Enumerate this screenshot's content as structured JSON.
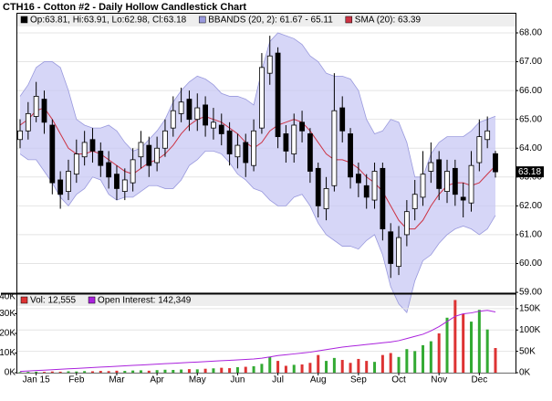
{
  "chart_data": [
    {
      "type": "candlestick",
      "title": "CTH16 - Cotton #2 - Daily Hollow Candlestick Chart",
      "last_price_label": "63.18",
      "ylim": [
        58.97,
        68.19
      ],
      "yticks": [
        {
          "value": 59,
          "label": "59.00"
        },
        {
          "value": 60,
          "label": "60.00"
        },
        {
          "value": 61,
          "label": "61.00"
        },
        {
          "value": 62,
          "label": "62.00"
        },
        {
          "value": 63,
          "label": "63.00"
        },
        {
          "value": 64,
          "label": "64.00"
        },
        {
          "value": 65,
          "label": "65.00"
        },
        {
          "value": 66,
          "label": "66.00"
        },
        {
          "value": 67,
          "label": "67.00"
        },
        {
          "value": 68,
          "label": "68.00"
        }
      ],
      "grid": true,
      "series": [
        {
          "name": "Op:63.81, Hi:63.91, Lo:62.98, Cl:63.18",
          "color": "#000000",
          "open": [
            64.3,
            64.6,
            65.1,
            65.7,
            64.8,
            62.9,
            62.5,
            63.1,
            63.7,
            64.3,
            63.9,
            63.5,
            63.1,
            62.5,
            62.8,
            63.7,
            64.1,
            63.5,
            64.0,
            64.7,
            65.2,
            65.7,
            65.0,
            65.5,
            64.7,
            64.8,
            64.6,
            63.7,
            64.2,
            63.4,
            64.7,
            66.6,
            67.3,
            64.5,
            63.8,
            64.9,
            64.5,
            63.3,
            61.9,
            62.7,
            65.4,
            64.5,
            63.1,
            62.7,
            62.2,
            63.3,
            61.1,
            59.9,
            61.0,
            61.9,
            62.3,
            63.2,
            63.6,
            62.5,
            63.3,
            62.3,
            62.1,
            63.5,
            64.3,
            63.81
          ],
          "high": [
            65.0,
            65.6,
            66.3,
            66.0,
            65.0,
            63.2,
            63.6,
            64.3,
            64.6,
            64.7,
            64.2,
            63.9,
            63.4,
            63.3,
            64.0,
            64.6,
            64.4,
            64.4,
            65.0,
            65.8,
            66.1,
            66.0,
            65.9,
            65.8,
            65.4,
            65.2,
            64.9,
            64.5,
            64.5,
            65.0,
            67.3,
            67.9,
            67.5,
            64.8,
            65.2,
            65.3,
            64.7,
            63.5,
            63.0,
            66.6,
            65.8,
            64.7,
            63.5,
            63.1,
            63.5,
            63.5,
            61.4,
            61.3,
            62.2,
            62.9,
            63.9,
            64.2,
            63.9,
            63.6,
            63.6,
            62.8,
            63.9,
            65.0,
            65.1,
            63.91
          ],
          "low": [
            64.0,
            64.3,
            64.9,
            64.5,
            62.4,
            61.9,
            62.2,
            62.8,
            63.4,
            63.5,
            63.0,
            62.6,
            62.2,
            62.2,
            62.5,
            63.3,
            63.0,
            63.2,
            63.7,
            64.4,
            64.9,
            64.6,
            64.6,
            64.4,
            64.3,
            64.1,
            63.4,
            63.3,
            63.0,
            63.2,
            64.5,
            66.2,
            64.0,
            63.5,
            63.5,
            64.2,
            62.8,
            61.6,
            61.5,
            62.5,
            64.2,
            62.6,
            62.3,
            61.9,
            61.9,
            60.8,
            59.5,
            59.6,
            60.6,
            61.5,
            62.0,
            62.8,
            62.2,
            62.1,
            62.0,
            61.6,
            61.8,
            63.2,
            64.0,
            62.98
          ],
          "close": [
            64.6,
            65.2,
            65.8,
            64.9,
            62.8,
            62.4,
            63.2,
            63.8,
            64.2,
            63.9,
            63.4,
            63.0,
            62.6,
            62.9,
            63.6,
            64.2,
            63.4,
            64.0,
            64.6,
            65.3,
            65.6,
            65.0,
            65.4,
            64.8,
            64.9,
            64.5,
            63.8,
            64.1,
            63.5,
            64.6,
            66.8,
            67.2,
            64.4,
            63.9,
            64.8,
            64.6,
            63.2,
            62.0,
            62.6,
            65.3,
            64.6,
            63.0,
            62.8,
            62.3,
            63.2,
            61.2,
            60.0,
            60.9,
            61.8,
            62.4,
            63.1,
            63.5,
            62.6,
            63.2,
            62.4,
            62.2,
            63.4,
            64.4,
            64.6,
            63.18
          ]
        },
        {
          "name": "BBANDS (20, 2): 61.67 - 65.11",
          "color": "#c8c8f4",
          "upper": [
            65.8,
            66.2,
            66.8,
            67.0,
            67.0,
            66.8,
            66.0,
            65.0,
            64.8,
            64.7,
            64.7,
            64.8,
            64.6,
            64.2,
            63.9,
            64.0,
            64.3,
            64.6,
            65.0,
            65.6,
            66.0,
            66.3,
            66.5,
            66.4,
            66.2,
            65.9,
            65.8,
            65.8,
            65.7,
            65.5,
            66.7,
            67.7,
            68.0,
            67.9,
            67.8,
            67.6,
            67.2,
            67.0,
            66.6,
            66.5,
            66.5,
            66.4,
            66.0,
            65.0,
            64.5,
            64.6,
            65.0,
            64.9,
            64.2,
            63.0,
            63.0,
            63.8,
            64.2,
            64.4,
            64.4,
            64.4,
            64.6,
            64.9,
            65.0,
            65.11
          ],
          "lower": [
            63.8,
            63.6,
            63.6,
            63.2,
            62.8,
            62.3,
            62.0,
            62.4,
            62.6,
            63.0,
            62.9,
            62.4,
            62.2,
            62.3,
            62.3,
            62.5,
            62.7,
            62.7,
            62.6,
            62.6,
            62.9,
            63.4,
            63.6,
            63.9,
            63.9,
            63.8,
            63.5,
            63.1,
            62.9,
            62.6,
            62.5,
            62.2,
            62.0,
            62.0,
            62.3,
            62.4,
            62.0,
            61.4,
            61.0,
            60.8,
            60.6,
            60.6,
            60.5,
            60.8,
            61.0,
            60.3,
            59.2,
            58.6,
            58.3,
            59.4,
            60.1,
            60.3,
            60.7,
            61.0,
            61.2,
            61.3,
            61.2,
            61.0,
            61.2,
            61.67
          ]
        },
        {
          "name": "SMA (20): 63.39",
          "color": "#cc3344",
          "values": [
            64.8,
            65.0,
            65.3,
            65.4,
            65.0,
            64.5,
            64.0,
            63.8,
            63.8,
            63.9,
            63.8,
            63.6,
            63.4,
            63.2,
            63.1,
            63.3,
            63.5,
            63.6,
            63.8,
            64.1,
            64.5,
            64.8,
            65.0,
            65.1,
            65.0,
            64.9,
            64.7,
            64.5,
            64.2,
            64.0,
            64.2,
            64.6,
            64.8,
            64.9,
            65.0,
            64.9,
            64.6,
            64.2,
            63.8,
            63.6,
            63.6,
            63.5,
            63.3,
            63.0,
            62.8,
            62.5,
            62.0,
            61.5,
            61.2,
            61.2,
            61.5,
            62.0,
            62.4,
            62.7,
            62.8,
            62.8,
            62.7,
            62.8,
            63.1,
            63.39
          ]
        }
      ]
    },
    {
      "type": "bar",
      "categories": [
        null,
        null,
        "Jan 15",
        null,
        null,
        null,
        null,
        "Feb",
        null,
        null,
        null,
        null,
        "Mar",
        null,
        null,
        null,
        null,
        "Apr",
        null,
        null,
        null,
        null,
        "May",
        null,
        null,
        null,
        null,
        "Jun",
        null,
        null,
        null,
        null,
        "Jul",
        null,
        null,
        null,
        null,
        "Aug",
        null,
        null,
        null,
        null,
        "Sep",
        null,
        null,
        null,
        null,
        "Oct",
        null,
        null,
        null,
        null,
        "Nov",
        null,
        null,
        null,
        null,
        "Dec",
        null,
        null
      ],
      "ylim": [
        0,
        40000
      ],
      "yticks": [
        {
          "value": 0,
          "label": "0K"
        },
        {
          "value": 10000,
          "label": "10K"
        },
        {
          "value": 20000,
          "label": "20K"
        },
        {
          "value": 30000,
          "label": "30K"
        },
        {
          "value": 40000,
          "label": "40K"
        }
      ],
      "y2lim": [
        0,
        184000
      ],
      "y2ticks": [
        {
          "value": 0,
          "label": "0K"
        },
        {
          "value": 50000,
          "label": "50K"
        },
        {
          "value": 100000,
          "label": "100K"
        },
        {
          "value": 150000,
          "label": "150K"
        }
      ],
      "series": [
        {
          "name": "Vol: 12,555",
          "color": "#dd3333",
          "values": [
            300,
            400,
            500,
            400,
            600,
            500,
            700,
            600,
            800,
            700,
            900,
            800,
            1000,
            900,
            1100,
            1200,
            1000,
            1300,
            1500,
            1400,
            1600,
            1800,
            1700,
            2000,
            2200,
            2500,
            2300,
            2800,
            3000,
            3300,
            4500,
            8000,
            6000,
            3500,
            4000,
            4200,
            5000,
            9000,
            6000,
            7500,
            6500,
            5000,
            7000,
            6000,
            5500,
            9000,
            10000,
            8000,
            12000,
            11000,
            14000,
            16000,
            20000,
            28000,
            37000,
            30000,
            26000,
            32000,
            22000,
            12555
          ]
        },
        {
          "name": "Open Interest: 142,349",
          "color": "#aa22dd",
          "axis": "y2",
          "values": [
            3000,
            4000,
            5000,
            6000,
            7000,
            8000,
            9000,
            10000,
            11000,
            12000,
            13000,
            14000,
            15000,
            16000,
            17000,
            18000,
            19000,
            20000,
            21000,
            22000,
            23000,
            24000,
            25000,
            26000,
            27000,
            28000,
            29000,
            30000,
            31000,
            32000,
            34000,
            37000,
            40000,
            42000,
            44000,
            46000,
            48000,
            51000,
            54000,
            57000,
            60000,
            62000,
            64000,
            66000,
            68000,
            70000,
            72000,
            75000,
            80000,
            85000,
            90000,
            98000,
            108000,
            120000,
            132000,
            138000,
            140000,
            144000,
            146000,
            142349
          ]
        }
      ]
    }
  ]
}
